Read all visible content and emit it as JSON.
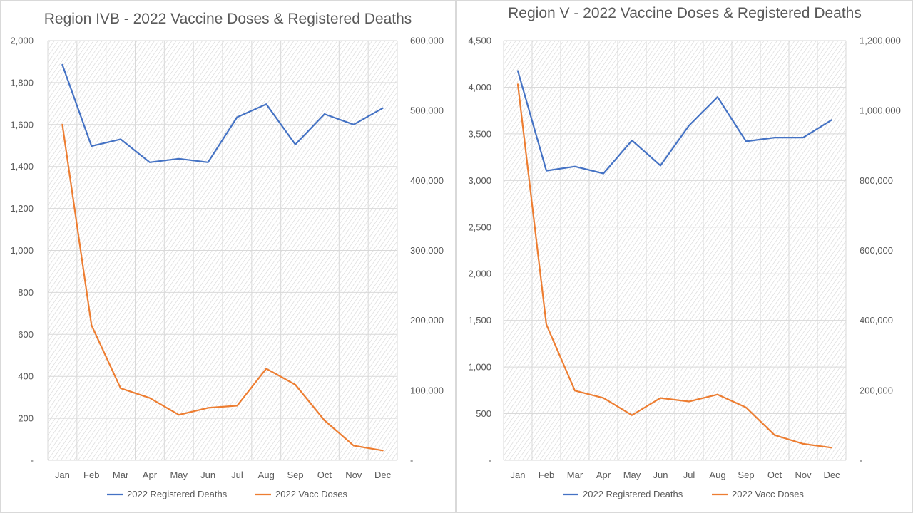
{
  "chart_data": [
    {
      "type": "line",
      "title": "Region IVB - 2022 Vaccine Doses & Registered Deaths",
      "categories": [
        "Jan",
        "Feb",
        "Mar",
        "Apr",
        "May",
        "Jun",
        "Jul",
        "Aug",
        "Sep",
        "Oct",
        "Nov",
        "Dec"
      ],
      "series": [
        {
          "name": "2022 Registered Deaths",
          "axis": "left",
          "color": "#4472C4",
          "values": [
            1885,
            1497,
            1530,
            1420,
            1437,
            1420,
            1635,
            1697,
            1505,
            1650,
            1600,
            1678
          ]
        },
        {
          "name": "2022 Vacc Doses",
          "axis": "right",
          "color": "#ED7D31",
          "values": [
            480000,
            193000,
            103000,
            89000,
            65000,
            75000,
            78000,
            131000,
            108000,
            57000,
            21000,
            14000
          ]
        }
      ],
      "y_left": {
        "min": 0,
        "max": 2000,
        "ticks": [
          "-",
          "200",
          "400",
          "600",
          "800",
          "1,000",
          "1,200",
          "1,400",
          "1,600",
          "1,800",
          "2,000"
        ]
      },
      "y_right": {
        "min": 0,
        "max": 600000,
        "ticks": [
          "-",
          "100,000",
          "200,000",
          "300,000",
          "400,000",
          "500,000",
          "600,000"
        ]
      },
      "grid": true,
      "legend": "bottom"
    },
    {
      "type": "line",
      "title": "Region V - 2022 Vaccine Doses & Registered Deaths",
      "categories": [
        "Jan",
        "Feb",
        "Mar",
        "Apr",
        "May",
        "Jun",
        "Jul",
        "Aug",
        "Sep",
        "Oct",
        "Nov",
        "Dec"
      ],
      "series": [
        {
          "name": "2022 Registered Deaths",
          "axis": "left",
          "color": "#4472C4",
          "values": [
            4175,
            3105,
            3150,
            3075,
            3430,
            3160,
            3590,
            3895,
            3420,
            3460,
            3460,
            3650
          ]
        },
        {
          "name": "2022 Vacc Doses",
          "axis": "right",
          "color": "#ED7D31",
          "values": [
            1075000,
            388000,
            199000,
            178000,
            129000,
            178000,
            168000,
            188000,
            151000,
            72000,
            47000,
            36000
          ]
        }
      ],
      "y_left": {
        "min": 0,
        "max": 4500,
        "ticks": [
          "-",
          "500",
          "1,000",
          "1,500",
          "2,000",
          "2,500",
          "3,000",
          "3,500",
          "4,000",
          "4,500"
        ]
      },
      "y_right": {
        "min": 0,
        "max": 1200000,
        "ticks": [
          "-",
          "200,000",
          "400,000",
          "600,000",
          "800,000",
          "1,000,000",
          "1,200,000"
        ]
      },
      "grid": true,
      "legend": "bottom"
    }
  ]
}
